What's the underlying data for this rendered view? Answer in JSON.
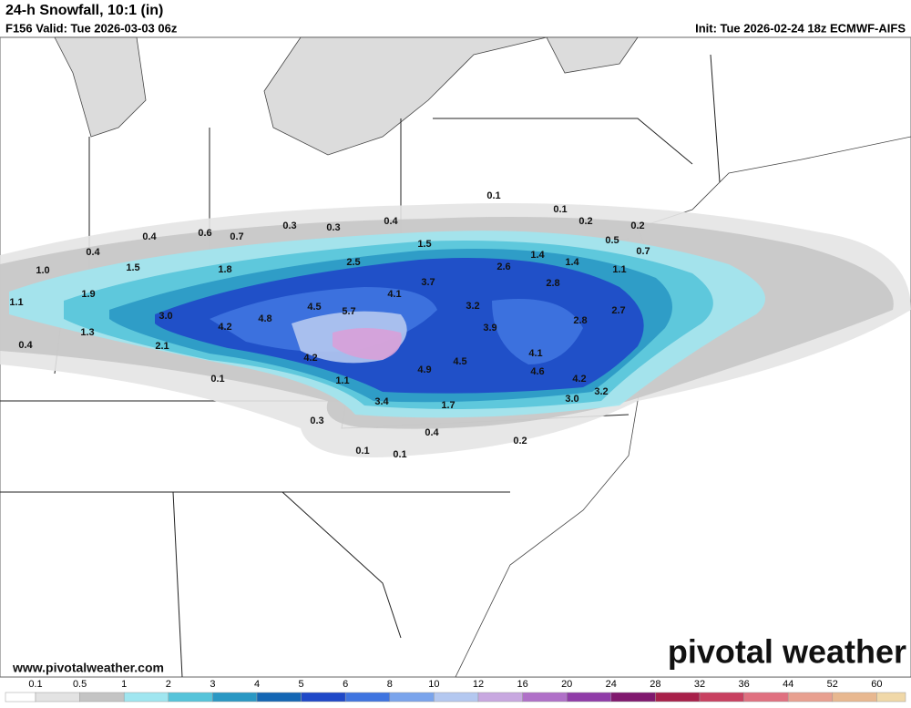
{
  "header": {
    "title": "24-h Snowfall, 10:1 (in)",
    "valid": "F156 Valid: Tue 2026-03-03 06z",
    "init": "Init: Tue 2026-02-24 18z ECMWF-AIFS"
  },
  "map": {
    "labels": [
      "0.1",
      "0.1",
      "0.2",
      "0.2",
      "0.3",
      "0.3",
      "0.4",
      "0.4",
      "0.6",
      "0.7",
      "0.5",
      "0.7",
      "1.5",
      "1.4",
      "1.4",
      "1.1",
      "0.4",
      "1.0",
      "1.5",
      "1.8",
      "2.5",
      "2.6",
      "2.8",
      "1.1",
      "1.9",
      "4.1",
      "3.7",
      "3.2",
      "4.5",
      "5.7",
      "3.0",
      "4.8",
      "4.2",
      "3.9",
      "2.8",
      "2.7",
      "1.3",
      "0.4",
      "2.1",
      "4.1",
      "4.2",
      "4.5",
      "4.9",
      "4.6",
      "4.2",
      "0.1",
      "1.1",
      "3.2",
      "3.0",
      "3.4",
      "1.7",
      "0.3",
      "0.4",
      "0.2",
      "0.1",
      "0.1"
    ]
  },
  "branding": {
    "logo": "pivotal weather",
    "url": "www.pivotalweather.com"
  },
  "colorbar": {
    "ticks": [
      "0.1",
      "0.5",
      "1",
      "2",
      "3",
      "4",
      "5",
      "6",
      "8",
      "10",
      "12",
      "16",
      "20",
      "24",
      "28",
      "32",
      "36",
      "44",
      "52",
      "60"
    ],
    "colors": [
      "#ffffff",
      "#e3e3e3",
      "#c4c4c4",
      "#a0e6f0",
      "#56c4da",
      "#2a98c4",
      "#1466b4",
      "#1f48c8",
      "#3f74e0",
      "#7aa4ec",
      "#b4c8f0",
      "#c8a8e0",
      "#b070c8",
      "#903ca8",
      "#80186e",
      "#a8204a",
      "#c84060",
      "#e07080",
      "#e8a090",
      "#e8b890",
      "#f0d8a8"
    ]
  }
}
